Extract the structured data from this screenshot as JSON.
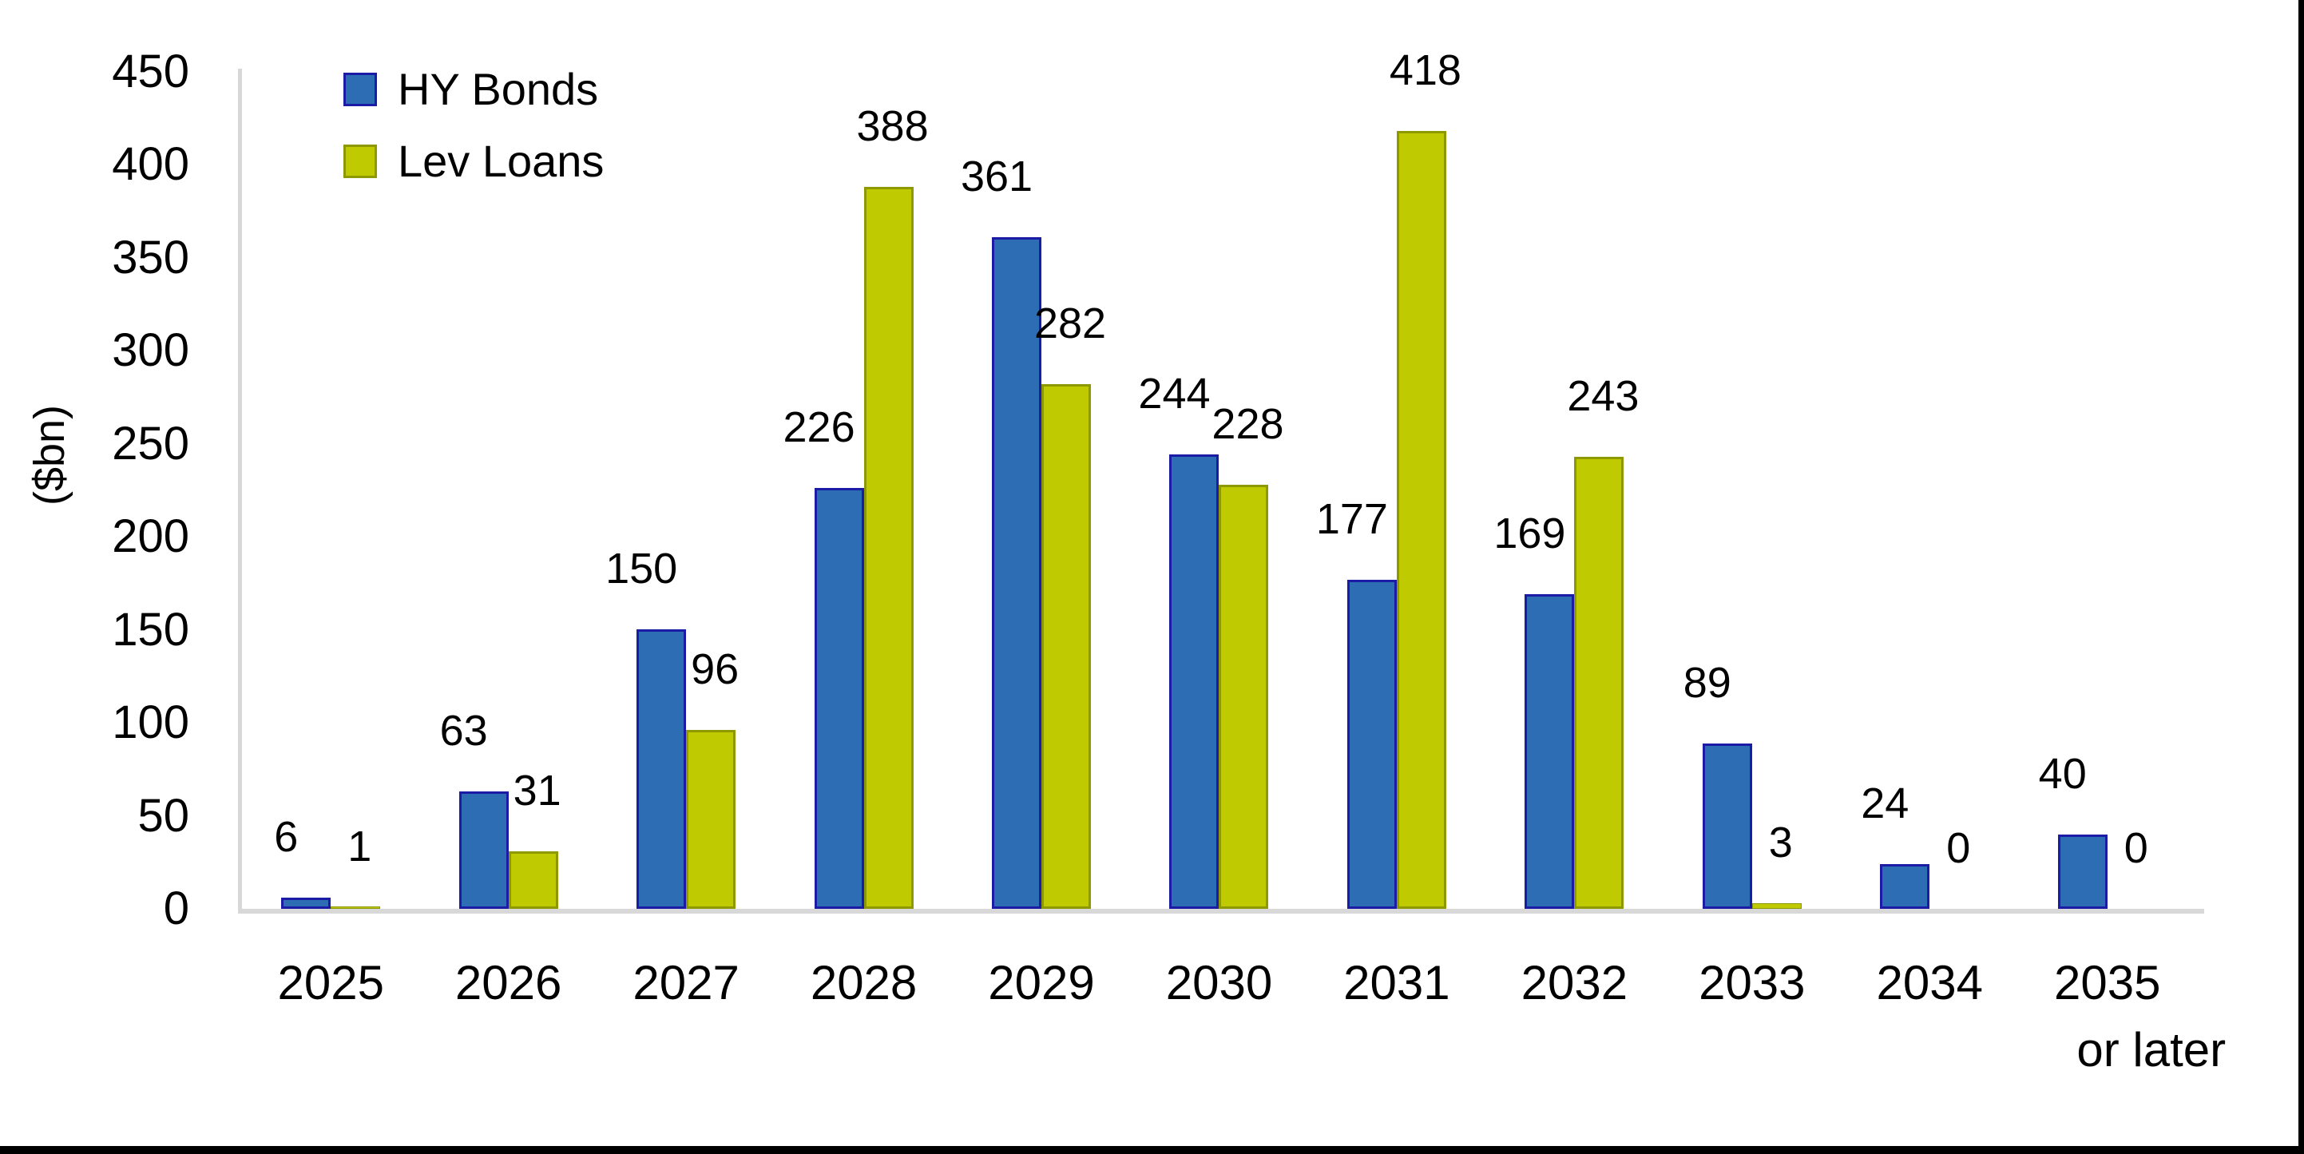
{
  "chart_data": {
    "type": "bar",
    "title": "",
    "ylabel": "($bn)",
    "xlabel": "",
    "ylim": [
      0,
      450
    ],
    "yticks": [
      0,
      50,
      100,
      150,
      200,
      250,
      300,
      350,
      400,
      450
    ],
    "grid": false,
    "legend_position": "top-left",
    "plot_background": "#FFFFFF",
    "axis_color": "#D8D8D8",
    "frame_color": "#000000",
    "categories": [
      "2025",
      "2026",
      "2027",
      "2028",
      "2029",
      "2030",
      "2031",
      "2032",
      "2033",
      "2034",
      "2035"
    ],
    "category_sublabels": [
      "",
      "",
      "",
      "",
      "",
      "",
      "",
      "",
      "",
      "",
      "or later"
    ],
    "series": [
      {
        "name": "HY Bonds",
        "color": "#2D6DB3",
        "border_color": "#1B1BA6",
        "values": [
          6,
          63,
          150,
          226,
          361,
          244,
          177,
          169,
          89,
          24,
          40
        ]
      },
      {
        "name": "Lev Loans",
        "color": "#BFCA00",
        "border_color": "#8E9800",
        "values": [
          1,
          31,
          96,
          388,
          282,
          228,
          418,
          243,
          3,
          0,
          0
        ]
      }
    ]
  }
}
